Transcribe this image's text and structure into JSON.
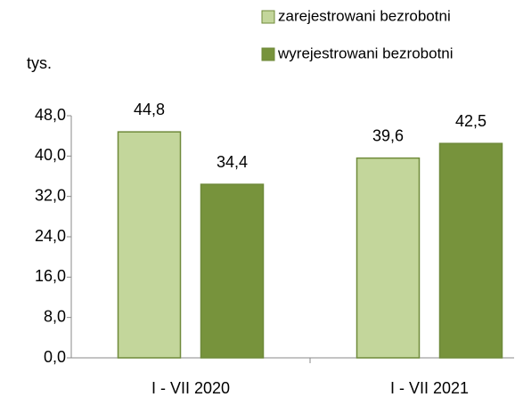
{
  "chart_data": {
    "type": "bar",
    "y_axis_label": "tys.",
    "categories": [
      "I - VII 2020",
      "I - VII 2021"
    ],
    "series": [
      {
        "name": "zarejestrowani bezrobotni",
        "color": "#c3d69b",
        "values": [
          44.8,
          39.6
        ],
        "value_labels": [
          "44,8",
          "39,6"
        ]
      },
      {
        "name": "wyrejestrowani bezrobotni",
        "color": "#77933c",
        "values": [
          34.4,
          42.5
        ],
        "value_labels": [
          "34,4",
          "42,5"
        ]
      }
    ],
    "ylim": [
      0,
      48
    ],
    "yticks": [
      {
        "value": 0,
        "label": "0,0"
      },
      {
        "value": 8,
        "label": "8,0"
      },
      {
        "value": 16,
        "label": "16,0"
      },
      {
        "value": 24,
        "label": "24,0"
      },
      {
        "value": 32,
        "label": "32,0"
      },
      {
        "value": 40,
        "label": "40,0"
      },
      {
        "value": 48,
        "label": "48,0"
      }
    ],
    "legend": "top-right",
    "grid": false
  }
}
